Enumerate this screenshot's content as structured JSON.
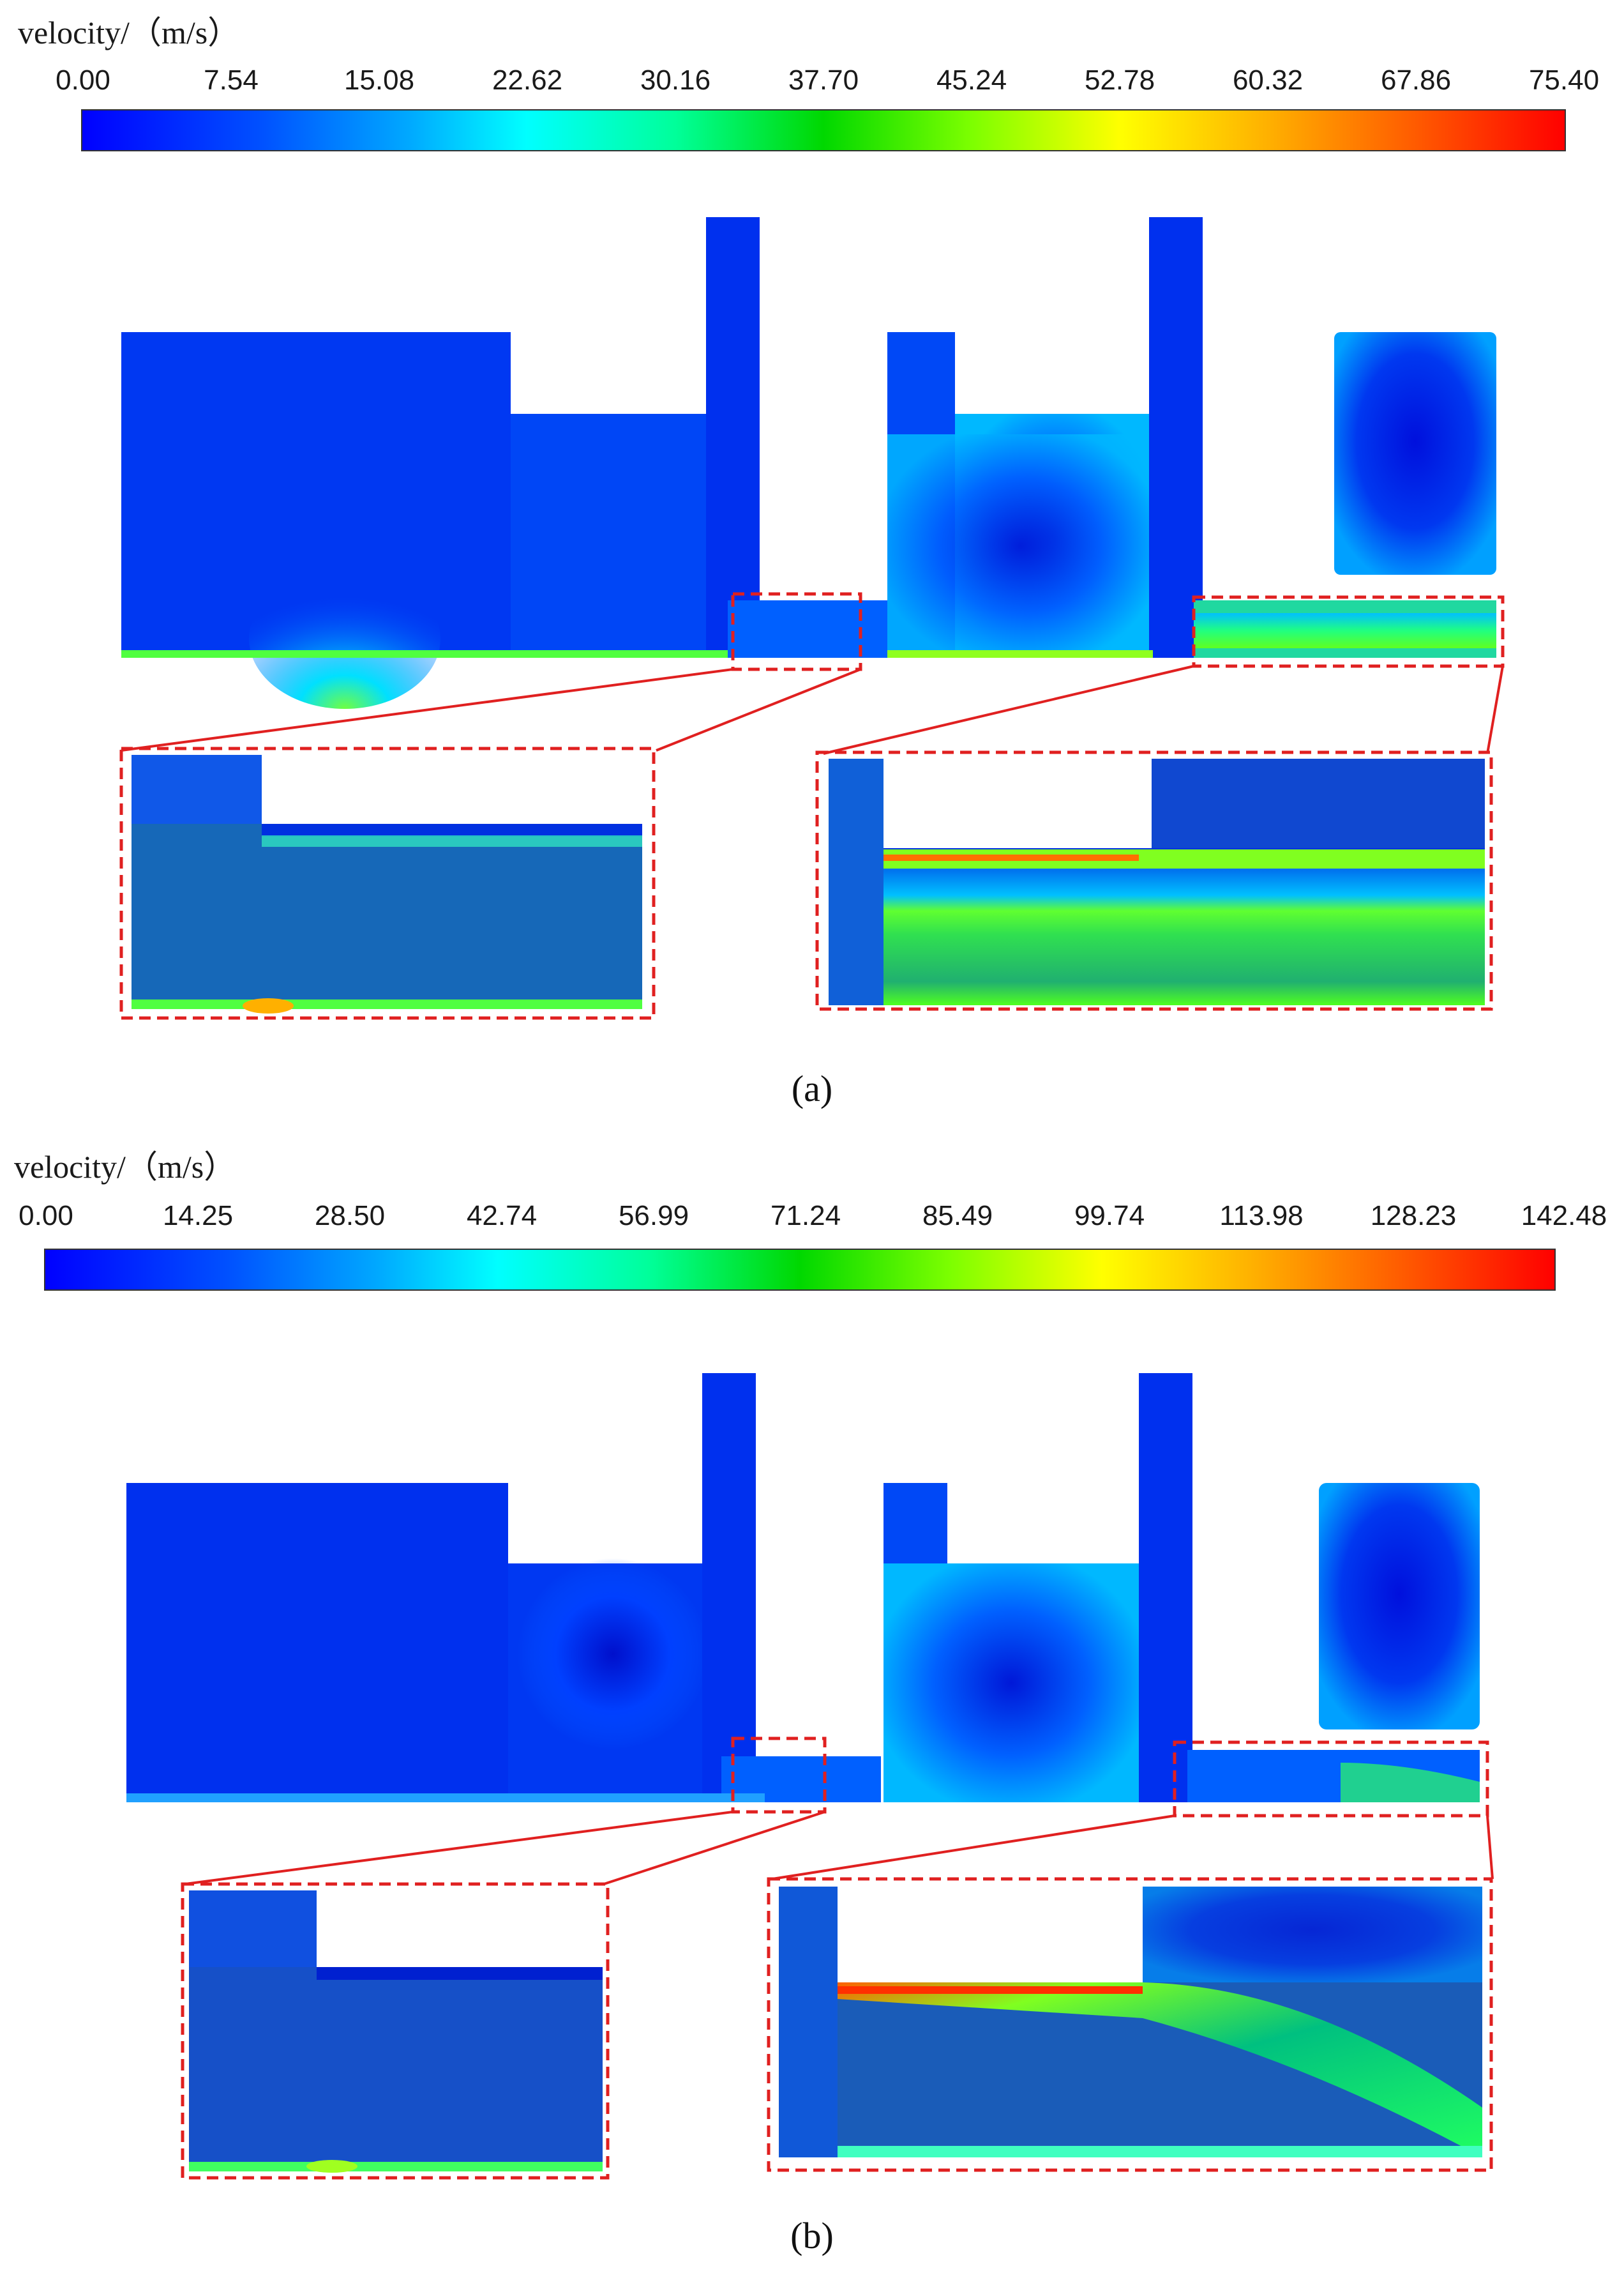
{
  "figure": {
    "colors": {
      "scale": [
        "#0000ff",
        "#0050ff",
        "#00b0ff",
        "#00ffff",
        "#00ff90",
        "#00e000",
        "#a0ff00",
        "#ffff00",
        "#ffb000",
        "#ff6000",
        "#ff0000"
      ],
      "domain_bg": "#0033ee",
      "highlight": "#e02020"
    },
    "panels": [
      {
        "id": "a",
        "caption": "(a)",
        "colorbar": {
          "title": "velocity/（m/s）",
          "ticks": [
            "0.00",
            "7.54",
            "15.08",
            "22.62",
            "30.16",
            "37.70",
            "45.24",
            "52.78",
            "60.32",
            "67.86",
            "75.40"
          ]
        }
      },
      {
        "id": "b",
        "caption": "(b)",
        "colorbar": {
          "title": "velocity/（m/s）",
          "ticks": [
            "0.00",
            "14.25",
            "28.50",
            "42.74",
            "56.99",
            "71.24",
            "85.49",
            "99.74",
            "113.98",
            "128.23",
            "142.48"
          ]
        }
      }
    ]
  }
}
